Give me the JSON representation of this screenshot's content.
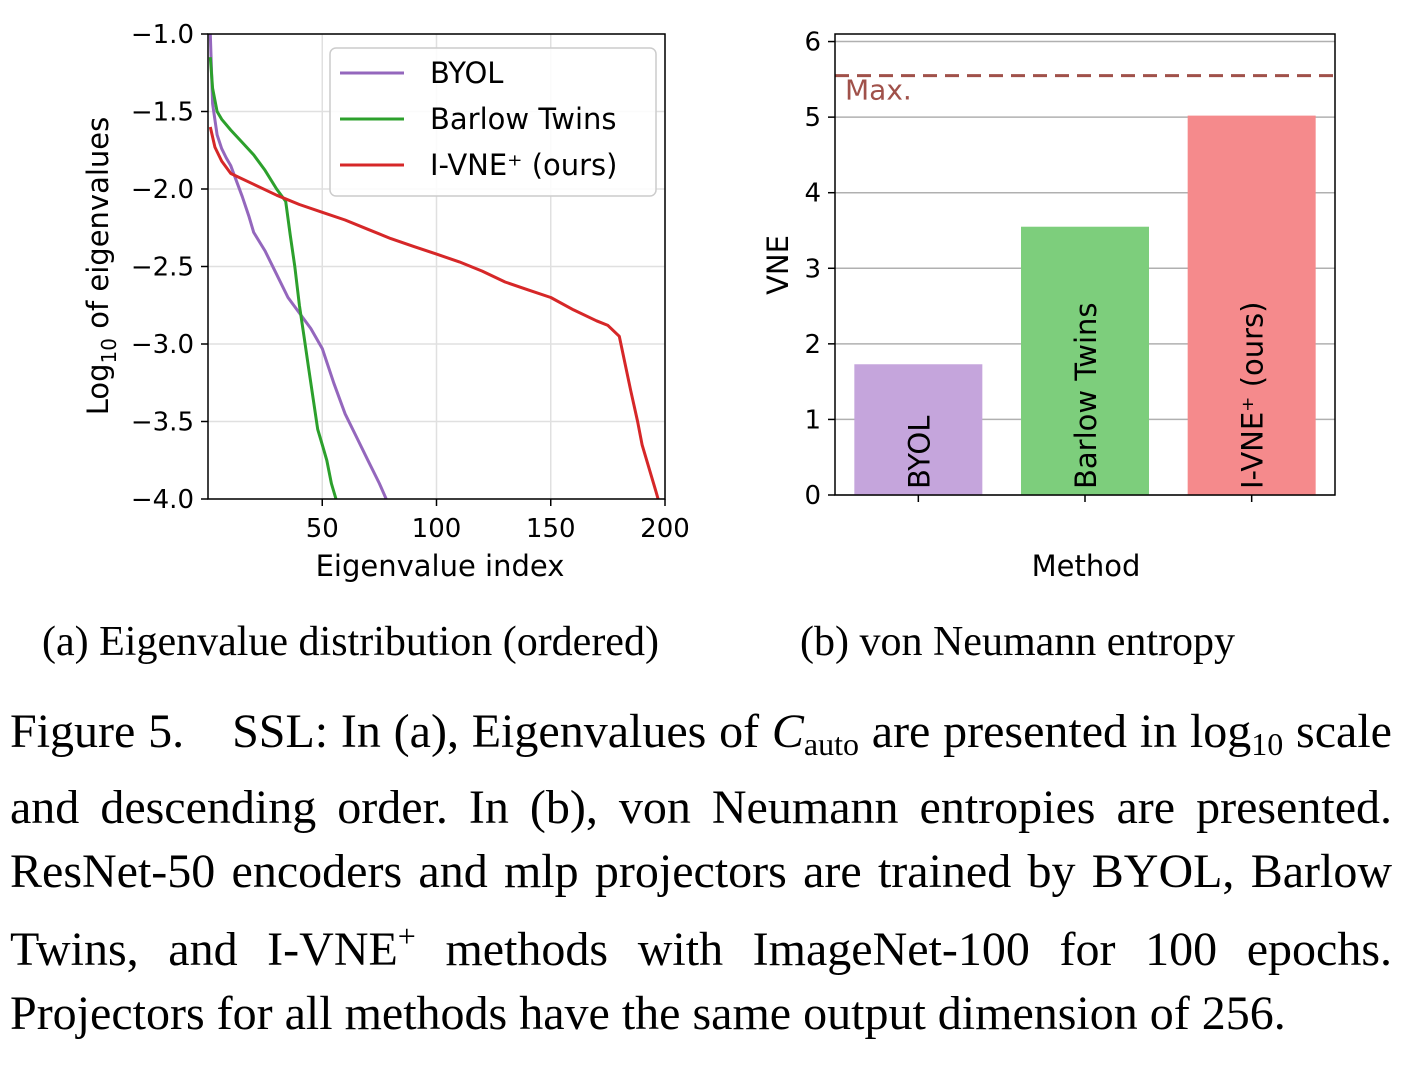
{
  "chart_data": [
    {
      "type": "line",
      "xlabel": "Eigenvalue index",
      "ylabel_base": "Log",
      "ylabel_sub": "10",
      "ylabel_rest": " of eigenvalues",
      "xlim": [
        0,
        200
      ],
      "ylim": [
        -4.0,
        -1.0
      ],
      "xticks": [
        50,
        100,
        150,
        200
      ],
      "yticks": [
        -1.0,
        -1.5,
        -2.0,
        -2.5,
        -3.0,
        -3.5,
        -4.0
      ],
      "ytick_labels": [
        "−1.0",
        "−1.5",
        "−2.0",
        "−2.5",
        "−3.0",
        "−3.5",
        "−4.0"
      ],
      "grid": true,
      "legend_position": "top-right",
      "series": [
        {
          "name": "BYOL",
          "color": "#9467bd",
          "x": [
            1,
            2,
            4,
            6,
            8,
            10,
            12,
            15,
            18,
            20,
            25,
            30,
            35,
            40,
            45,
            50,
            55,
            60,
            65,
            70,
            75,
            78
          ],
          "y": [
            -1.0,
            -1.45,
            -1.65,
            -1.74,
            -1.8,
            -1.85,
            -1.93,
            -2.05,
            -2.18,
            -2.28,
            -2.4,
            -2.55,
            -2.7,
            -2.8,
            -2.9,
            -3.03,
            -3.25,
            -3.45,
            -3.6,
            -3.75,
            -3.9,
            -4.0
          ]
        },
        {
          "name": "Barlow Twins",
          "color": "#2ca02c",
          "x": [
            1,
            2,
            4,
            6,
            10,
            15,
            20,
            25,
            30,
            34,
            36,
            38,
            40,
            42,
            44,
            46,
            48,
            50,
            52,
            54,
            56
          ],
          "y": [
            -1.15,
            -1.35,
            -1.5,
            -1.55,
            -1.62,
            -1.7,
            -1.78,
            -1.88,
            -2.0,
            -2.08,
            -2.3,
            -2.5,
            -2.75,
            -2.95,
            -3.15,
            -3.35,
            -3.55,
            -3.65,
            -3.75,
            -3.9,
            -4.0
          ]
        },
        {
          "name": "I-VNE⁺ (ours)",
          "color": "#d62728",
          "x": [
            1,
            3,
            6,
            10,
            20,
            30,
            40,
            50,
            60,
            70,
            80,
            90,
            100,
            110,
            120,
            130,
            140,
            150,
            160,
            170,
            175,
            180,
            185,
            188,
            190,
            192,
            194,
            196,
            197
          ],
          "y": [
            -1.6,
            -1.73,
            -1.82,
            -1.9,
            -1.97,
            -2.04,
            -2.1,
            -2.15,
            -2.2,
            -2.26,
            -2.32,
            -2.37,
            -2.42,
            -2.47,
            -2.53,
            -2.6,
            -2.65,
            -2.7,
            -2.78,
            -2.85,
            -2.88,
            -2.95,
            -3.3,
            -3.5,
            -3.65,
            -3.75,
            -3.85,
            -3.95,
            -4.0
          ]
        }
      ]
    },
    {
      "type": "bar",
      "xlabel": "Method",
      "ylabel": "VNE",
      "ylim": [
        0,
        6.1
      ],
      "yticks": [
        0,
        1,
        2,
        3,
        4,
        5,
        6
      ],
      "grid": true,
      "categories": [
        "BYOL",
        "Barlow Twins",
        "I-VNE⁺ (ours)"
      ],
      "values": [
        1.73,
        3.55,
        5.02
      ],
      "colors": [
        "#c5a5dc",
        "#7dce7c",
        "#f58a8c"
      ],
      "reference_line": {
        "label": "Max.",
        "value": 5.55,
        "color": "#a0514a"
      }
    }
  ],
  "subcaptions": {
    "a": "(a) Eigenvalue distribution (ordered)",
    "b": "(b) von Neumann entropy"
  },
  "caption": {
    "p1": "Figure 5. SSL: In (a), Eigenvalues of ",
    "c_symbol": "C",
    "c_sub": "auto",
    "p2": " are presented in log",
    "log_sub": "10",
    "p3": " scale and descending order.  In (b), von Neumann entropies are presented. ResNet-50 encoders and mlp projectors are trained by BYOL, Barlow Twins, and I-VNE",
    "plus": "+",
    "p4": " methods with ImageNet-100 for 100 epochs.  Projectors for all methods have the same output dimension of 256."
  }
}
